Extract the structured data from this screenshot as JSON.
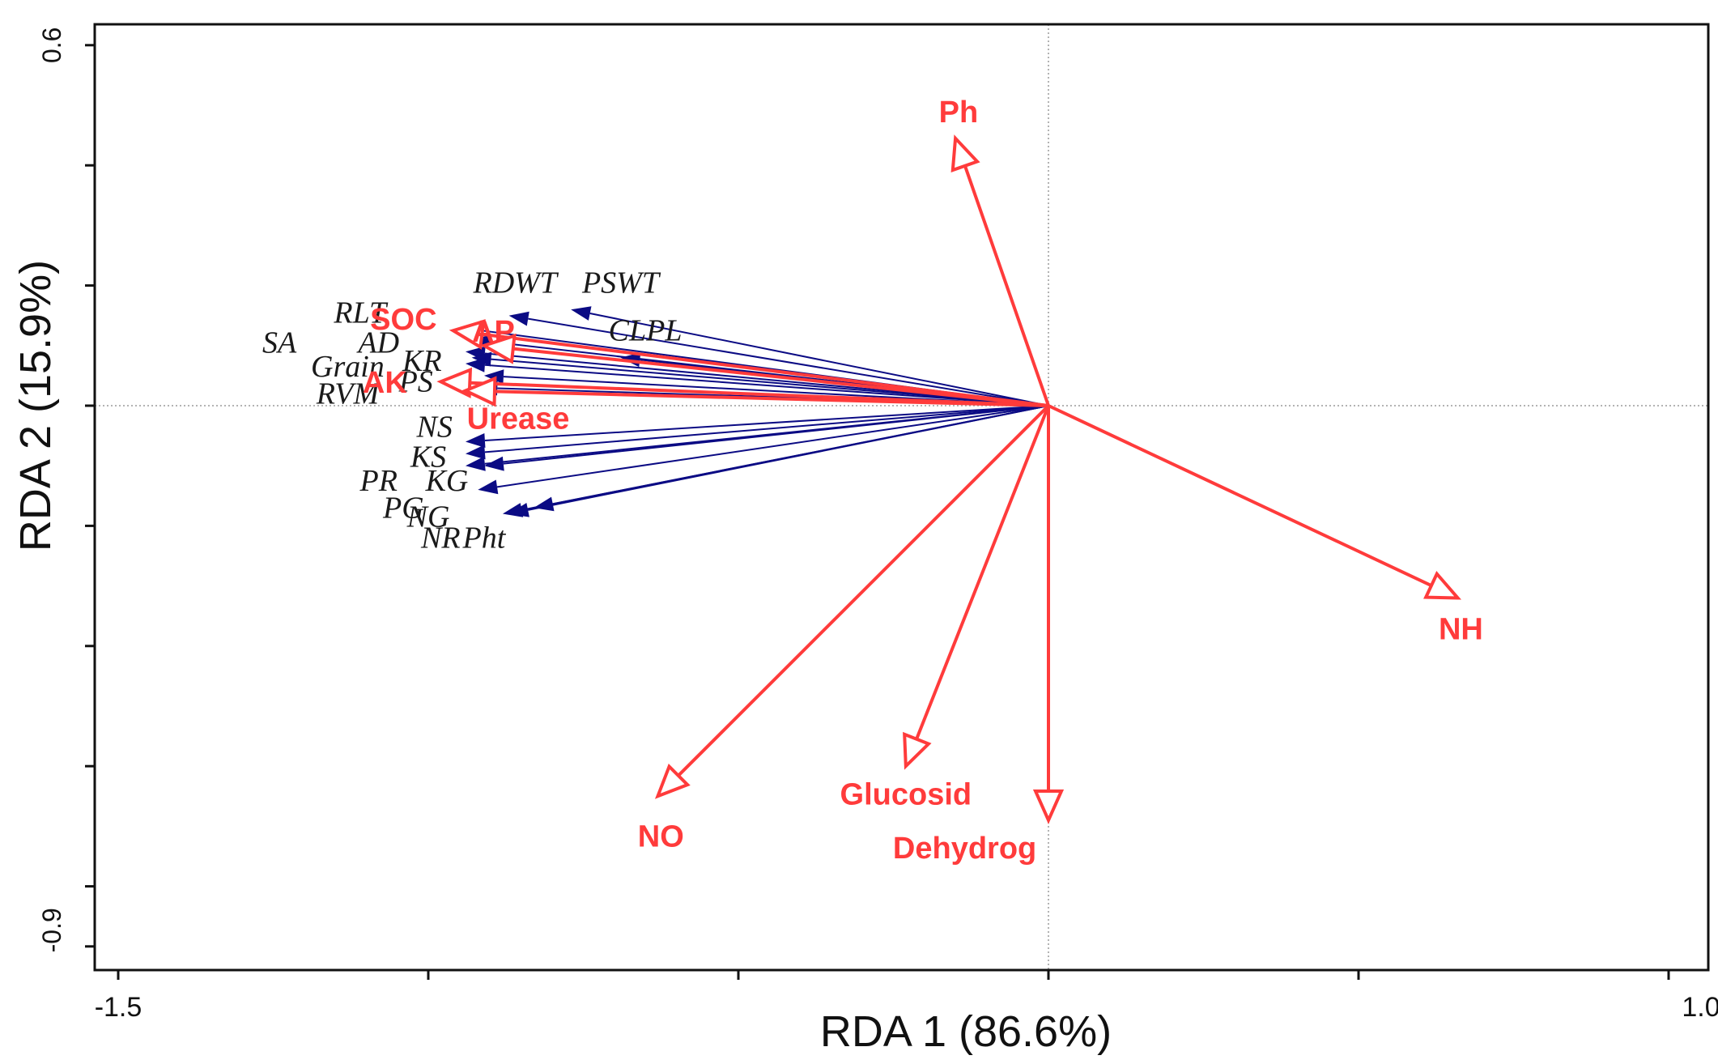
{
  "chart_data": {
    "type": "scatter",
    "subtype": "RDA biplot",
    "title": "",
    "xlabel": "RDA 1 (86.6%)",
    "ylabel": "RDA 2 (15.9%)",
    "xlim": [
      -1.5,
      1.0
    ],
    "ylim": [
      -0.9,
      0.6
    ],
    "x_tick_labels": [
      "-1.5",
      "1.0"
    ],
    "y_tick_labels": [
      "0.6",
      "-0.9"
    ],
    "x_tick_values": [
      -1.5,
      -1.0,
      -0.5,
      0.0,
      0.5,
      1.0
    ],
    "y_tick_values": [
      0.6,
      0.4,
      0.2,
      0.0,
      -0.2,
      -0.4,
      -0.6,
      -0.8,
      -0.9
    ],
    "origin_lines": true,
    "colors": {
      "response": "#0b0b84",
      "environment": "#ff3b3b",
      "frame": "#111111",
      "origin": "#9a9a9a"
    },
    "response_variables": [
      {
        "name": "RDWT",
        "x": -0.87,
        "y": 0.15,
        "lx": -0.86,
        "ly": 0.2
      },
      {
        "name": "PSWT",
        "x": -0.77,
        "y": 0.16,
        "lx": -0.69,
        "ly": 0.2
      },
      {
        "name": "CLPL",
        "x": -0.69,
        "y": 0.08,
        "lx": -0.65,
        "ly": 0.12
      },
      {
        "name": "RLT",
        "x": -0.95,
        "y": 0.13,
        "lx": -1.11,
        "ly": 0.15
      },
      {
        "name": "AD",
        "x": -0.93,
        "y": 0.11,
        "lx": -1.08,
        "ly": 0.1
      },
      {
        "name": "SA",
        "x": -0.94,
        "y": 0.09,
        "lx": -1.24,
        "ly": 0.1
      },
      {
        "name": "KR",
        "x": -0.93,
        "y": 0.08,
        "lx": -1.01,
        "ly": 0.07
      },
      {
        "name": "Grain",
        "x": -0.94,
        "y": 0.07,
        "lx": -1.13,
        "ly": 0.06
      },
      {
        "name": "PS",
        "x": -0.91,
        "y": 0.05,
        "lx": -1.02,
        "ly": 0.035
      },
      {
        "name": "RVM",
        "x": -0.92,
        "y": 0.03,
        "lx": -1.13,
        "ly": 0.015
      },
      {
        "name": "NS",
        "x": -0.94,
        "y": -0.06,
        "lx": -0.99,
        "ly": -0.04
      },
      {
        "name": "KS",
        "x": -0.94,
        "y": -0.08,
        "lx": -1.0,
        "ly": -0.09
      },
      {
        "name": "PR",
        "x": -0.94,
        "y": -0.1,
        "lx": -1.08,
        "ly": -0.13
      },
      {
        "name": "KG",
        "x": -0.91,
        "y": -0.1,
        "lx": -0.97,
        "ly": -0.13
      },
      {
        "name": "PG",
        "x": -0.92,
        "y": -0.14,
        "lx": -1.04,
        "ly": -0.175
      },
      {
        "name": "NG",
        "x": -0.88,
        "y": -0.18,
        "lx": -1.0,
        "ly": -0.19
      },
      {
        "name": "NR",
        "x": -0.87,
        "y": -0.18,
        "lx": -0.98,
        "ly": -0.225
      },
      {
        "name": "Pht",
        "x": -0.83,
        "y": -0.17,
        "lx": -0.91,
        "ly": -0.225
      }
    ],
    "environmental_variables": [
      {
        "name": "Ph",
        "x": -0.15,
        "y": 0.445,
        "lx": -0.145,
        "ly": 0.485
      },
      {
        "name": "SOC",
        "x": -0.96,
        "y": 0.125,
        "lx": -1.04,
        "ly": 0.14
      },
      {
        "name": "AP",
        "x": -0.91,
        "y": 0.1,
        "lx": -0.895,
        "ly": 0.12
      },
      {
        "name": "AK",
        "x": -0.98,
        "y": 0.04,
        "lx": -1.07,
        "ly": 0.035
      },
      {
        "name": "Urease",
        "x": -0.94,
        "y": 0.025,
        "lx": -0.855,
        "ly": -0.025
      },
      {
        "name": "NH",
        "x": 0.66,
        "y": -0.32,
        "lx": 0.665,
        "ly": -0.375
      },
      {
        "name": "NO",
        "x": -0.63,
        "y": -0.65,
        "lx": -0.625,
        "ly": -0.72
      },
      {
        "name": "Glucosid",
        "x": -0.23,
        "y": -0.6,
        "lx": -0.23,
        "ly": -0.65
      },
      {
        "name": "Dehydrog",
        "x": 0.0,
        "y": -0.69,
        "lx": -0.135,
        "ly": -0.74
      }
    ]
  }
}
